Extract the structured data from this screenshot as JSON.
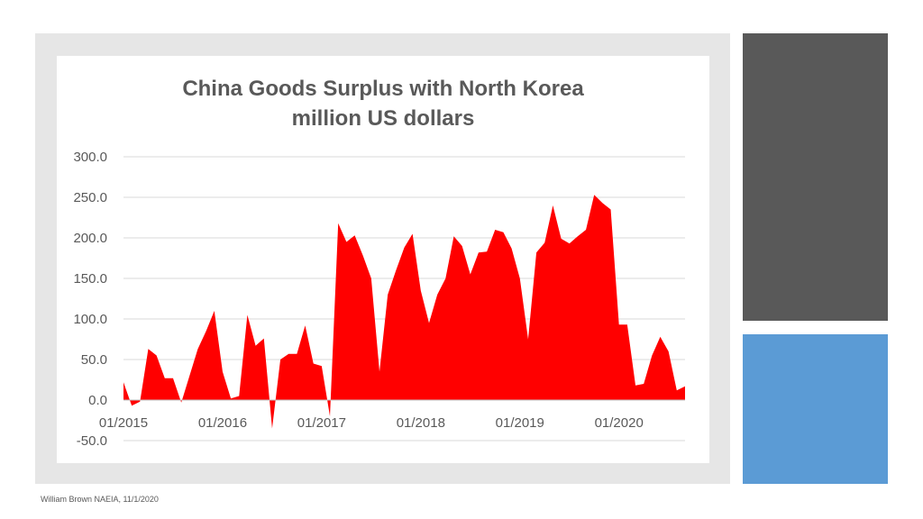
{
  "footer": {
    "text": "William Brown NAEIA, 11/1/2020"
  },
  "colors": {
    "series": "#ff0000",
    "panel_dark": "#595959",
    "panel_blue": "#5b9bd5",
    "frame": "#e6e6e6"
  },
  "chart_data": {
    "type": "area",
    "title_lines": [
      "China Goods Surplus with North Korea",
      "million US dollars"
    ],
    "xlabel": "",
    "ylabel": "",
    "ylim": [
      -50,
      300
    ],
    "yticks": [
      "300.0",
      "250.0",
      "200.0",
      "150.0",
      "100.0",
      "50.0",
      "0.0",
      "-50.0"
    ],
    "ytick_values": [
      300,
      250,
      200,
      150,
      100,
      50,
      0,
      -50
    ],
    "xtick_labels": [
      "01/2015",
      "01/2016",
      "01/2017",
      "01/2018",
      "01/2019",
      "01/2020"
    ],
    "xtick_dates": [
      "2015-01",
      "2016-01",
      "2017-01",
      "2018-01",
      "2019-01",
      "2020-01"
    ],
    "grid": true,
    "legend": "none",
    "series": [
      {
        "x": [
          "2015-01",
          "2015-02",
          "2015-03",
          "2015-04",
          "2015-05",
          "2015-06",
          "2015-07",
          "2015-08",
          "2015-09",
          "2015-10",
          "2015-11",
          "2015-12",
          "2016-01",
          "2016-02",
          "2016-03",
          "2016-04",
          "2016-05",
          "2016-06",
          "2016-07",
          "2016-08",
          "2016-09",
          "2016-10",
          "2016-11",
          "2016-12",
          "2017-01",
          "2017-02",
          "2017-03",
          "2017-04",
          "2017-05",
          "2017-06",
          "2017-07",
          "2017-08",
          "2017-09",
          "2017-10",
          "2017-11",
          "2017-12",
          "2018-01",
          "2018-02",
          "2018-03",
          "2018-04",
          "2018-05",
          "2018-06",
          "2018-07",
          "2018-08",
          "2018-09",
          "2018-10",
          "2018-11",
          "2018-12",
          "2019-01",
          "2019-02",
          "2019-03",
          "2019-04",
          "2019-05",
          "2019-06",
          "2019-07",
          "2019-08",
          "2019-09",
          "2019-10",
          "2019-11",
          "2019-12",
          "2020-01",
          "2020-02",
          "2020-03",
          "2020-04",
          "2020-05",
          "2020-06",
          "2020-07",
          "2020-08",
          "2020-09"
        ],
        "values": [
          22,
          -7,
          -2,
          63,
          55,
          27,
          27,
          -3,
          30,
          63,
          85,
          110,
          35,
          2,
          5,
          105,
          67,
          76,
          -35,
          50,
          57,
          57,
          92,
          45,
          42,
          -20,
          218,
          195,
          203,
          178,
          150,
          35,
          130,
          160,
          188,
          205,
          135,
          95,
          130,
          150,
          202,
          190,
          155,
          182,
          183,
          210,
          207,
          187,
          150,
          75,
          182,
          194,
          240,
          199,
          193,
          202,
          210,
          253,
          243,
          235,
          93,
          93,
          18,
          20,
          55,
          78,
          60,
          12,
          17
        ]
      }
    ]
  }
}
